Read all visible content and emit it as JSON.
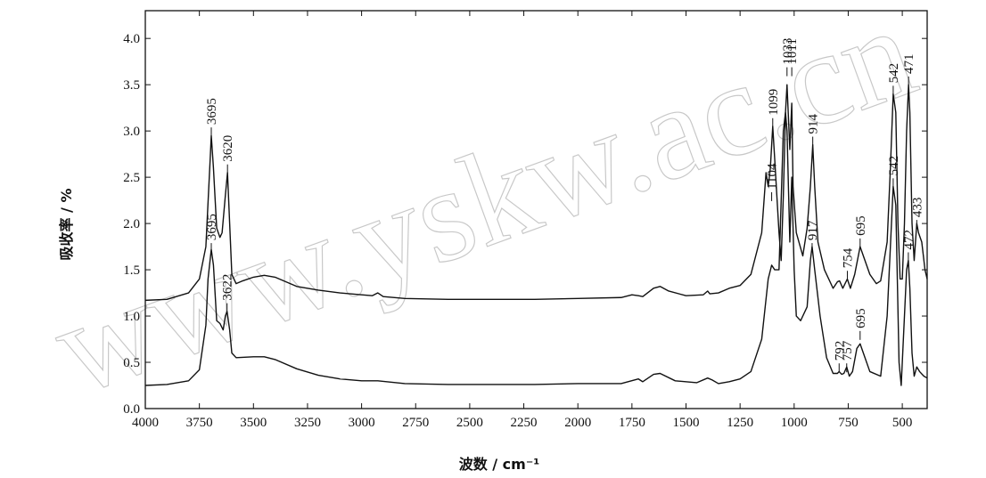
{
  "chart_data": {
    "type": "line",
    "x_label": "波数 / cm⁻¹",
    "y_label": "吸收率 / %",
    "watermark": "www.yskw.ac.cn",
    "xlim": [
      4000,
      385
    ],
    "ylim": [
      0,
      4.3
    ],
    "xticks": [
      4000,
      3750,
      3500,
      3250,
      3000,
      2750,
      2500,
      2250,
      2000,
      1750,
      1500,
      1250,
      1000,
      750,
      500
    ],
    "yticks": [
      {
        "value": 0,
        "label": "0.0"
      },
      0.5,
      {
        "value": 1,
        "label": "1.0"
      },
      1.5,
      {
        "value": 2,
        "label": "2.0"
      },
      2.5,
      {
        "value": 3,
        "label": "3.0"
      },
      3.5,
      {
        "value": 4,
        "label": "4.0"
      }
    ],
    "series": [
      {
        "color": "#111111",
        "x": [
          4000,
          3900,
          3800,
          3750,
          3720,
          3700,
          3695,
          3685,
          3670,
          3655,
          3645,
          3630,
          3620,
          3610,
          3600,
          3580,
          3550,
          3500,
          3450,
          3400,
          3300,
          3200,
          3100,
          3000,
          2950,
          2925,
          2900,
          2800,
          2600,
          2400,
          2200,
          2000,
          1800,
          1750,
          1720,
          1700,
          1650,
          1620,
          1580,
          1500,
          1420,
          1400,
          1390,
          1350,
          1300,
          1250,
          1200,
          1150,
          1130,
          1120,
          1110,
          1099,
          1090,
          1070,
          1060,
          1050,
          1040,
          1033,
          1020,
          1011,
          1005,
          990,
          960,
          940,
          925,
          914,
          905,
          890,
          860,
          820,
          800,
          790,
          775,
          754,
          740,
          720,
          695,
          680,
          650,
          620,
          600,
          570,
          555,
          542,
          530,
          520,
          510,
          500,
          490,
          480,
          471,
          465,
          455,
          445,
          433,
          425,
          410,
          395,
          385
        ],
        "values": [
          1.17,
          1.18,
          1.25,
          1.4,
          1.75,
          2.7,
          2.95,
          2.6,
          1.95,
          1.85,
          1.9,
          2.3,
          2.55,
          2.0,
          1.45,
          1.35,
          1.38,
          1.42,
          1.44,
          1.42,
          1.32,
          1.28,
          1.25,
          1.23,
          1.22,
          1.25,
          1.21,
          1.19,
          1.18,
          1.18,
          1.18,
          1.19,
          1.2,
          1.23,
          1.22,
          1.21,
          1.3,
          1.32,
          1.27,
          1.22,
          1.23,
          1.27,
          1.24,
          1.25,
          1.3,
          1.33,
          1.45,
          1.9,
          2.55,
          2.4,
          2.6,
          3.05,
          2.7,
          1.9,
          1.6,
          2.3,
          3.2,
          3.5,
          2.8,
          3.3,
          2.4,
          1.9,
          1.65,
          1.95,
          2.4,
          2.85,
          2.4,
          1.8,
          1.5,
          1.3,
          1.37,
          1.38,
          1.3,
          1.4,
          1.3,
          1.45,
          1.75,
          1.65,
          1.45,
          1.35,
          1.38,
          1.8,
          2.6,
          3.4,
          3.2,
          2.0,
          1.4,
          1.4,
          2.0,
          3.0,
          3.5,
          3.2,
          2.0,
          1.6,
          2.0,
          1.9,
          1.8,
          1.5,
          1.4
        ]
      },
      {
        "color": "#111111",
        "x": [
          4000,
          3900,
          3800,
          3750,
          3720,
          3710,
          3695,
          3685,
          3670,
          3655,
          3640,
          3630,
          3622,
          3610,
          3600,
          3580,
          3500,
          3450,
          3400,
          3300,
          3200,
          3100,
          3000,
          2925,
          2800,
          2600,
          2400,
          2200,
          2000,
          1800,
          1720,
          1700,
          1650,
          1620,
          1550,
          1450,
          1400,
          1380,
          1350,
          1300,
          1250,
          1200,
          1150,
          1120,
          1104,
          1090,
          1070,
          1050,
          1040,
          1033,
          1020,
          1011,
          1000,
          990,
          970,
          940,
          925,
          917,
          905,
          880,
          850,
          820,
          800,
          792,
          780,
          770,
          757,
          745,
          730,
          710,
          695,
          680,
          650,
          600,
          570,
          550,
          542,
          530,
          515,
          505,
          490,
          480,
          472,
          465,
          455,
          445,
          433,
          420,
          400,
          385
        ],
        "values": [
          0.25,
          0.26,
          0.3,
          0.42,
          0.9,
          1.4,
          1.72,
          1.55,
          0.95,
          0.92,
          0.85,
          1.0,
          1.05,
          0.85,
          0.6,
          0.55,
          0.56,
          0.56,
          0.53,
          0.43,
          0.36,
          0.32,
          0.3,
          0.3,
          0.27,
          0.26,
          0.26,
          0.26,
          0.27,
          0.27,
          0.32,
          0.29,
          0.37,
          0.38,
          0.3,
          0.28,
          0.33,
          0.31,
          0.27,
          0.29,
          0.32,
          0.4,
          0.75,
          1.4,
          1.55,
          1.5,
          1.5,
          3.0,
          3.2,
          3.0,
          1.8,
          2.5,
          1.5,
          1.0,
          0.95,
          1.1,
          1.6,
          1.75,
          1.5,
          1.0,
          0.55,
          0.38,
          0.38,
          0.4,
          0.37,
          0.38,
          0.45,
          0.35,
          0.4,
          0.65,
          0.7,
          0.6,
          0.4,
          0.35,
          1.0,
          2.0,
          2.4,
          2.2,
          0.5,
          0.25,
          1.0,
          1.5,
          1.6,
          1.3,
          0.6,
          0.35,
          0.45,
          0.4,
          0.35,
          0.33
        ]
      }
    ],
    "annotations": [
      {
        "label": "3695",
        "x": 3695,
        "y": 3.0
      },
      {
        "label": "3620",
        "x": 3620,
        "y": 2.6
      },
      {
        "label": "3695",
        "x": 3695,
        "y": 1.75
      },
      {
        "label": "3622",
        "x": 3622,
        "y": 1.1
      },
      {
        "label": "1099",
        "x": 1099,
        "y": 3.1
      },
      {
        "label": "1104",
        "x": 1104,
        "y": 2.3
      },
      {
        "label": "1033",
        "x": 1033,
        "y": 3.65
      },
      {
        "label": "1011",
        "x": 1011,
        "y": 3.65
      },
      {
        "label": "914",
        "x": 914,
        "y": 2.9
      },
      {
        "label": "917",
        "x": 917,
        "y": 1.75
      },
      {
        "label": "754",
        "x": 754,
        "y": 1.45
      },
      {
        "label": "695",
        "x": 695,
        "y": 1.8
      },
      {
        "label": "542",
        "x": 542,
        "y": 3.45
      },
      {
        "label": "471",
        "x": 471,
        "y": 3.55
      },
      {
        "label": "542",
        "x": 542,
        "y": 2.45
      },
      {
        "label": "472",
        "x": 472,
        "y": 1.65
      },
      {
        "label": "433",
        "x": 433,
        "y": 2.0
      },
      {
        "label": "792",
        "x": 792,
        "y": 0.45
      },
      {
        "label": "757",
        "x": 757,
        "y": 0.45
      },
      {
        "label": "695",
        "x": 695,
        "y": 0.8
      }
    ]
  }
}
